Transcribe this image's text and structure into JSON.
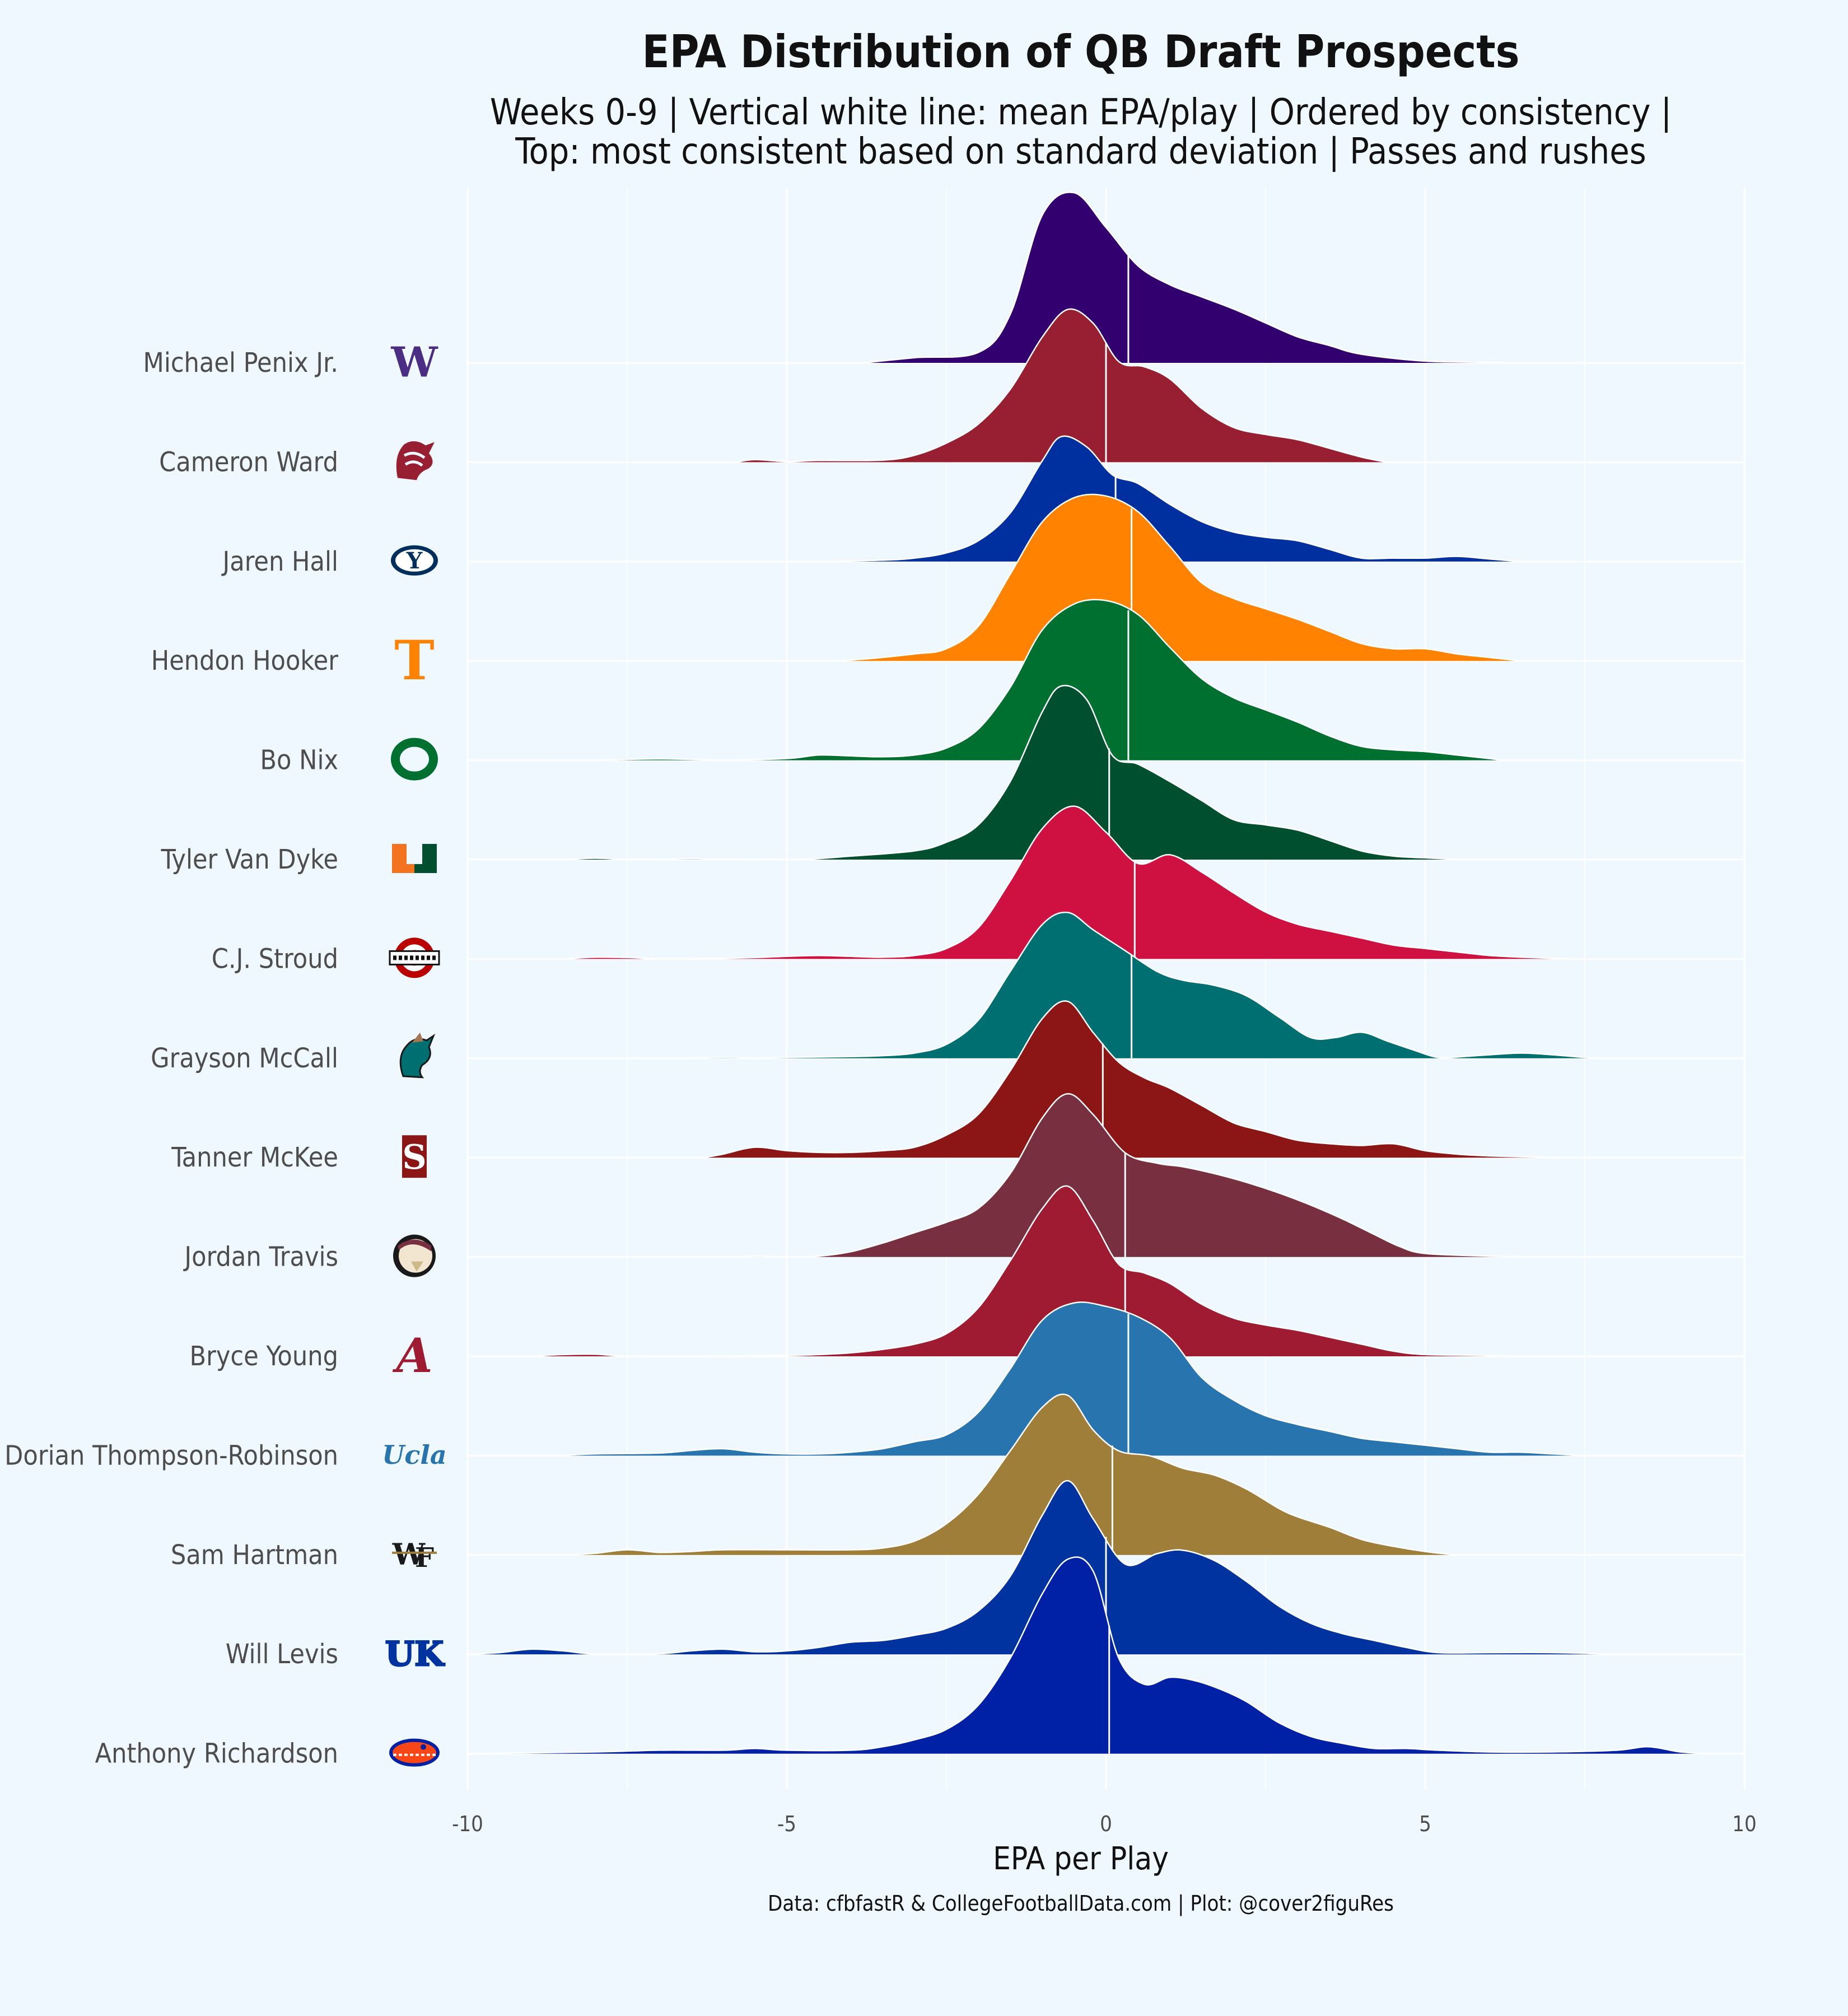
{
  "chart_data": {
    "type": "ridgeline",
    "title": "EPA Distribution of QB Draft Prospects",
    "subtitle_line1": "Weeks 0-9 | Vertical white line: mean EPA/play | Ordered by consistency |",
    "subtitle_line2": "Top: most consistent based on standard deviation | Passes and rushes",
    "xlabel": "EPA per Play",
    "caption": "Data: cfbfastR & CollegeFootballData.com | Plot: @cover2figuRes",
    "xlim": [
      -10,
      10
    ],
    "x_ticks": [
      -10,
      -5,
      0,
      5,
      10
    ],
    "x_tick_labels": [
      "-10",
      "-5",
      "0",
      "5",
      "10"
    ],
    "grid": true,
    "x_grid": "white",
    "series": [
      {
        "name": "Michael Penix Jr.",
        "school_logo": "washington-w-logo",
        "color": "#33006F",
        "mean": 0.35,
        "density_x": [
          -3.8,
          -3,
          -2,
          -1.5,
          -1,
          -0.5,
          0,
          0.5,
          1,
          1.5,
          2,
          2.5,
          3,
          3.5,
          4,
          5,
          6,
          6.4
        ],
        "density_y": [
          0,
          0.03,
          0.06,
          0.28,
          0.85,
          0.98,
          0.78,
          0.56,
          0.45,
          0.38,
          0.31,
          0.23,
          0.15,
          0.1,
          0.05,
          0.01,
          0.004,
          0
        ]
      },
      {
        "name": "Cameron Ward",
        "school_logo": "wsu-cougar-logo",
        "color": "#981E32",
        "mean": 0.0,
        "density_x": [
          -5.8,
          -5.5,
          -5,
          -4.5,
          -3.5,
          -3,
          -2.5,
          -2,
          -1.5,
          -1,
          -0.6,
          -0.2,
          0.2,
          0.6,
          1,
          1.5,
          2,
          2.5,
          3,
          3.5,
          4,
          4.4
        ],
        "density_y": [
          0,
          0.015,
          0.004,
          0.01,
          0.012,
          0.04,
          0.11,
          0.22,
          0.42,
          0.72,
          0.88,
          0.8,
          0.58,
          0.55,
          0.48,
          0.31,
          0.2,
          0.16,
          0.13,
          0.08,
          0.03,
          0
        ]
      },
      {
        "name": "Jaren Hall",
        "school_logo": "byu-y-logo",
        "color": "#0030A0",
        "mean": 0.15,
        "density_x": [
          -4.5,
          -3.5,
          -3,
          -2.5,
          -2,
          -1.5,
          -1,
          -0.7,
          -0.3,
          0.1,
          0.5,
          1,
          1.5,
          2,
          2.5,
          3,
          3.5,
          4,
          4.5,
          5,
          5.5,
          6,
          6.5
        ],
        "density_y": [
          0,
          0.008,
          0.02,
          0.05,
          0.12,
          0.28,
          0.58,
          0.72,
          0.66,
          0.5,
          0.45,
          0.33,
          0.23,
          0.17,
          0.14,
          0.12,
          0.07,
          0.02,
          0.02,
          0.02,
          0.03,
          0.015,
          0
        ]
      },
      {
        "name": "Hendon Hooker",
        "school_logo": "tennessee-t-logo",
        "color": "#FF8200",
        "mean": 0.4,
        "density_x": [
          -4.8,
          -4,
          -3,
          -2.5,
          -2,
          -1.5,
          -1,
          -0.5,
          0,
          0.5,
          1,
          1.5,
          2,
          2.5,
          3,
          3.5,
          4,
          4.5,
          5,
          5.5,
          6,
          6.5
        ],
        "density_y": [
          0,
          0.005,
          0.04,
          0.07,
          0.2,
          0.5,
          0.8,
          0.94,
          0.95,
          0.86,
          0.66,
          0.45,
          0.36,
          0.3,
          0.24,
          0.17,
          0.1,
          0.07,
          0.07,
          0.04,
          0.02,
          0
        ]
      },
      {
        "name": "Bo Nix",
        "school_logo": "oregon-o-logo",
        "color": "#007030",
        "mean": 0.35,
        "density_x": [
          -9.5,
          -8,
          -7,
          -6,
          -5,
          -4.5,
          -4,
          -3.5,
          -3,
          -2.5,
          -2,
          -1.5,
          -1,
          -0.5,
          0,
          0.5,
          1,
          1.5,
          2,
          2.5,
          3,
          3.5,
          4,
          4.5,
          5,
          5.5,
          6,
          6.2
        ],
        "density_y": [
          0,
          0.002,
          0.008,
          0.002,
          0.01,
          0.03,
          0.025,
          0.02,
          0.03,
          0.07,
          0.18,
          0.42,
          0.75,
          0.9,
          0.92,
          0.84,
          0.65,
          0.47,
          0.36,
          0.29,
          0.22,
          0.14,
          0.08,
          0.06,
          0.05,
          0.03,
          0.01,
          0
        ]
      },
      {
        "name": "Tyler Van Dyke",
        "school_logo": "miami-u-logo",
        "color": "#005030",
        "mean": 0.05,
        "density_x": [
          -8.5,
          -8,
          -7.5,
          -6.5,
          -6,
          -5.5,
          -4.8,
          -4,
          -3,
          -2.5,
          -2,
          -1.5,
          -1,
          -0.7,
          -0.3,
          0.1,
          0.5,
          1,
          1.5,
          2,
          2.5,
          3,
          3.5,
          4,
          4.5,
          5,
          5.6
        ],
        "density_y": [
          0,
          0.008,
          0.002,
          0.005,
          0.002,
          0.004,
          0,
          0.02,
          0.05,
          0.1,
          0.2,
          0.45,
          0.85,
          1.0,
          0.92,
          0.6,
          0.55,
          0.45,
          0.34,
          0.23,
          0.2,
          0.17,
          0.11,
          0.05,
          0.02,
          0.01,
          0
        ]
      },
      {
        "name": "C.J. Stroud",
        "school_logo": "ohio-state-logo",
        "color": "#CE1141",
        "mean": 0.45,
        "density_x": [
          -8.5,
          -8,
          -7.5,
          -7,
          -6,
          -5.5,
          -5,
          -4.5,
          -4,
          -3.5,
          -3,
          -2.5,
          -2,
          -1.5,
          -1,
          -0.5,
          0,
          0.5,
          1,
          1.5,
          2,
          2.5,
          3,
          3.5,
          4,
          4.5,
          5,
          5.5,
          6,
          6.5,
          7,
          7.4
        ],
        "density_y": [
          0,
          0.01,
          0.008,
          0.002,
          0.004,
          0.008,
          0.015,
          0.02,
          0.015,
          0.01,
          0.02,
          0.06,
          0.18,
          0.45,
          0.75,
          0.88,
          0.73,
          0.55,
          0.6,
          0.5,
          0.38,
          0.27,
          0.2,
          0.16,
          0.12,
          0.08,
          0.06,
          0.04,
          0.02,
          0.01,
          0.004,
          0
        ]
      },
      {
        "name": "Grayson McCall",
        "school_logo": "coastal-carolina-logo",
        "color": "#006F71",
        "mean": 0.4,
        "density_x": [
          -6.8,
          -6,
          -5.5,
          -5,
          -4,
          -3.5,
          -3,
          -2.5,
          -2,
          -1.5,
          -1,
          -0.6,
          -0.2,
          0.3,
          0.8,
          1.2,
          1.7,
          2.2,
          2.7,
          3.2,
          3.6,
          4,
          4.4,
          4.8,
          5.2,
          5.6,
          6,
          6.5,
          7,
          7.5,
          7.9
        ],
        "density_y": [
          0,
          0.005,
          0.002,
          0.005,
          0.01,
          0.015,
          0.03,
          0.08,
          0.22,
          0.5,
          0.77,
          0.84,
          0.74,
          0.62,
          0.5,
          0.45,
          0.42,
          0.36,
          0.24,
          0.12,
          0.12,
          0.15,
          0.1,
          0.05,
          0.005,
          0.01,
          0.02,
          0.03,
          0.02,
          0.005,
          0
        ]
      },
      {
        "name": "Tanner McKee",
        "school_logo": "stanford-s-logo",
        "color": "#8C1515",
        "mean": -0.05,
        "density_x": [
          -6.3,
          -6,
          -5.5,
          -5,
          -4.5,
          -4,
          -3.5,
          -3,
          -2.5,
          -2,
          -1.5,
          -1,
          -0.6,
          -0.2,
          0.2,
          0.6,
          1,
          1.5,
          2,
          2.5,
          3,
          3.5,
          4,
          4.5,
          5,
          5.5,
          6,
          6.5,
          7,
          7.2
        ],
        "density_y": [
          0,
          0.02,
          0.06,
          0.04,
          0.03,
          0.03,
          0.04,
          0.06,
          0.13,
          0.25,
          0.5,
          0.8,
          0.9,
          0.72,
          0.55,
          0.46,
          0.4,
          0.3,
          0.2,
          0.15,
          0.1,
          0.08,
          0.07,
          0.08,
          0.04,
          0.02,
          0.01,
          0.005,
          0.002,
          0
        ]
      },
      {
        "name": "Jordan Travis",
        "school_logo": "fsu-seminole-logo",
        "color": "#782F40",
        "mean": 0.3,
        "density_x": [
          -5.8,
          -5.5,
          -5,
          -4.5,
          -4,
          -3.5,
          -3,
          -2.5,
          -2,
          -1.5,
          -1,
          -0.6,
          -0.2,
          0.3,
          0.8,
          1.2,
          1.7,
          2.2,
          2.7,
          3.2,
          3.7,
          4.2,
          4.6,
          5,
          6,
          7
        ],
        "density_y": [
          0,
          0.004,
          0.002,
          0.005,
          0.03,
          0.08,
          0.14,
          0.2,
          0.28,
          0.48,
          0.8,
          0.94,
          0.82,
          0.6,
          0.54,
          0.52,
          0.48,
          0.43,
          0.37,
          0.3,
          0.22,
          0.13,
          0.06,
          0.02,
          0.005,
          0
        ]
      },
      {
        "name": "Bryce Young",
        "school_logo": "alabama-a-logo",
        "color": "#9E1B32",
        "mean": 0.3,
        "density_x": [
          -9,
          -8.5,
          -8,
          -7.5,
          -6,
          -5,
          -4.5,
          -4,
          -3.5,
          -3,
          -2.5,
          -2,
          -1.5,
          -1,
          -0.6,
          -0.2,
          0.2,
          0.6,
          1,
          1.5,
          2,
          2.5,
          3,
          3.5,
          4,
          4.5,
          5,
          6,
          6.5
        ],
        "density_y": [
          0,
          0.01,
          0.012,
          0.002,
          0.002,
          0.004,
          0.01,
          0.02,
          0.04,
          0.07,
          0.13,
          0.28,
          0.55,
          0.85,
          0.98,
          0.78,
          0.53,
          0.48,
          0.42,
          0.3,
          0.22,
          0.18,
          0.15,
          0.11,
          0.07,
          0.03,
          0.01,
          0.004,
          0
        ]
      },
      {
        "name": "Dorian Thompson-Robinson",
        "school_logo": "ucla-logo",
        "color": "#2774AE",
        "mean": 0.35,
        "density_x": [
          -8.6,
          -8,
          -7,
          -6.5,
          -6,
          -5.5,
          -5,
          -4.5,
          -4,
          -3.5,
          -3,
          -2.5,
          -2,
          -1.5,
          -1,
          -0.5,
          0,
          0.5,
          1,
          1.5,
          2,
          2.5,
          3,
          3.5,
          4,
          4.5,
          5,
          5.5,
          6,
          6.5,
          7,
          7.5
        ],
        "density_y": [
          0,
          0.01,
          0.015,
          0.03,
          0.04,
          0.02,
          0.01,
          0.01,
          0.02,
          0.04,
          0.08,
          0.12,
          0.25,
          0.5,
          0.78,
          0.88,
          0.86,
          0.8,
          0.68,
          0.45,
          0.32,
          0.23,
          0.18,
          0.14,
          0.1,
          0.08,
          0.06,
          0.04,
          0.02,
          0.02,
          0.01,
          0
        ]
      },
      {
        "name": "Sam Hartman",
        "school_logo": "wake-forest-logo",
        "color": "#9E7E38",
        "mean": 0.1,
        "density_x": [
          -8.5,
          -8,
          -7.5,
          -7,
          -6.5,
          -6,
          -5,
          -4,
          -3.5,
          -3,
          -2.5,
          -2,
          -1.5,
          -1,
          -0.6,
          -0.2,
          0.2,
          0.7,
          1.2,
          1.7,
          2.2,
          2.7,
          3,
          3.5,
          4,
          4.5,
          5,
          5.5
        ],
        "density_y": [
          0,
          0.01,
          0.03,
          0.015,
          0.02,
          0.03,
          0.03,
          0.03,
          0.04,
          0.08,
          0.18,
          0.35,
          0.6,
          0.85,
          0.92,
          0.72,
          0.6,
          0.57,
          0.5,
          0.46,
          0.38,
          0.27,
          0.22,
          0.16,
          0.09,
          0.05,
          0.02,
          0
        ]
      },
      {
        "name": "Will Levis",
        "school_logo": "kentucky-uk-logo",
        "color": "#0033A0",
        "mean": 0.0,
        "density_x": [
          -10,
          -9.5,
          -9,
          -8.5,
          -8,
          -7,
          -6.5,
          -6,
          -5.5,
          -5,
          -4.5,
          -4,
          -3.5,
          -3,
          -2.5,
          -2,
          -1.5,
          -1,
          -0.6,
          -0.2,
          0.3,
          0.8,
          1.2,
          1.7,
          2.2,
          2.7,
          3.2,
          3.7,
          4.2,
          4.7,
          5.2,
          6,
          7,
          8
        ],
        "density_y": [
          0,
          0.01,
          0.03,
          0.02,
          0.002,
          0.004,
          0.02,
          0.03,
          0.015,
          0.02,
          0.04,
          0.07,
          0.08,
          0.11,
          0.15,
          0.25,
          0.45,
          0.8,
          1.0,
          0.78,
          0.52,
          0.58,
          0.6,
          0.54,
          0.42,
          0.28,
          0.18,
          0.12,
          0.08,
          0.04,
          0.01,
          0.01,
          0.01,
          0
        ]
      },
      {
        "name": "Anthony Richardson",
        "school_logo": "florida-gator-logo",
        "color": "#0021A5",
        "mean": 0.05,
        "density_x": [
          -10,
          -8,
          -7,
          -6,
          -5.5,
          -5,
          -4,
          -3.5,
          -3,
          -2.5,
          -2,
          -1.5,
          -1,
          -0.6,
          -0.2,
          0.2,
          0.6,
          1,
          1.4,
          1.8,
          2.2,
          2.7,
          3.2,
          3.7,
          4.2,
          4.7,
          5.2,
          6,
          7,
          8,
          8.5,
          9,
          9.5
        ],
        "density_y": [
          0,
          0.01,
          0.02,
          0.02,
          0.03,
          0.02,
          0.02,
          0.04,
          0.08,
          0.14,
          0.28,
          0.55,
          0.92,
          1.12,
          1.05,
          0.55,
          0.4,
          0.44,
          0.42,
          0.37,
          0.3,
          0.18,
          0.1,
          0.06,
          0.03,
          0.03,
          0.02,
          0.01,
          0.01,
          0.02,
          0.04,
          0.01,
          0
        ]
      }
    ]
  }
}
